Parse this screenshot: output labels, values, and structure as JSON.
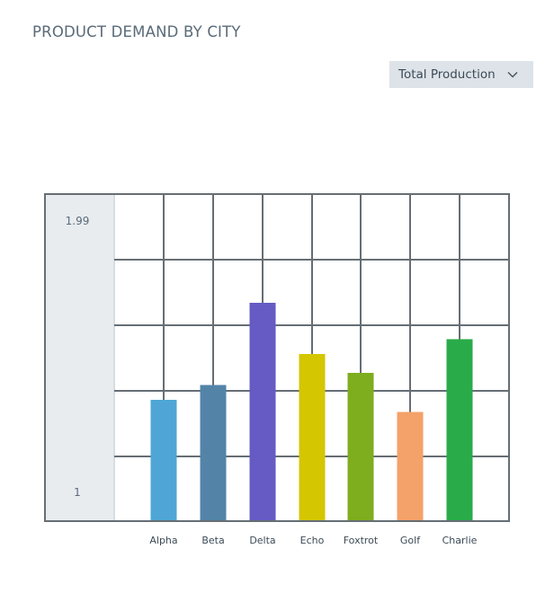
{
  "title": "PRODUCT DEMAND BY CITY",
  "dropdown": {
    "selected": "Total Production",
    "icon": "chevron-down-icon"
  },
  "colors": {
    "grid": "#666e74",
    "axis_panel": "#e8ecef",
    "axis_panel_border": "#d7dde2"
  },
  "chart_data": {
    "type": "bar",
    "title": "",
    "xlabel": "",
    "ylabel": "",
    "ylim": [
      1,
      2
    ],
    "grid": true,
    "y_tick_labels": [
      "1.99",
      "1"
    ],
    "categories": [
      "Alpha",
      "Beta",
      "Delta",
      "Echo",
      "Foxtrot",
      "Golf",
      "Charlie"
    ],
    "values": [
      1.45,
      1.505,
      1.81,
      1.62,
      1.55,
      1.405,
      1.675
    ],
    "bar_colors": [
      "#4fa6d6",
      "#5384a8",
      "#665bc4",
      "#d4c600",
      "#7ead1e",
      "#f4a16a",
      "#2aab4a"
    ]
  }
}
